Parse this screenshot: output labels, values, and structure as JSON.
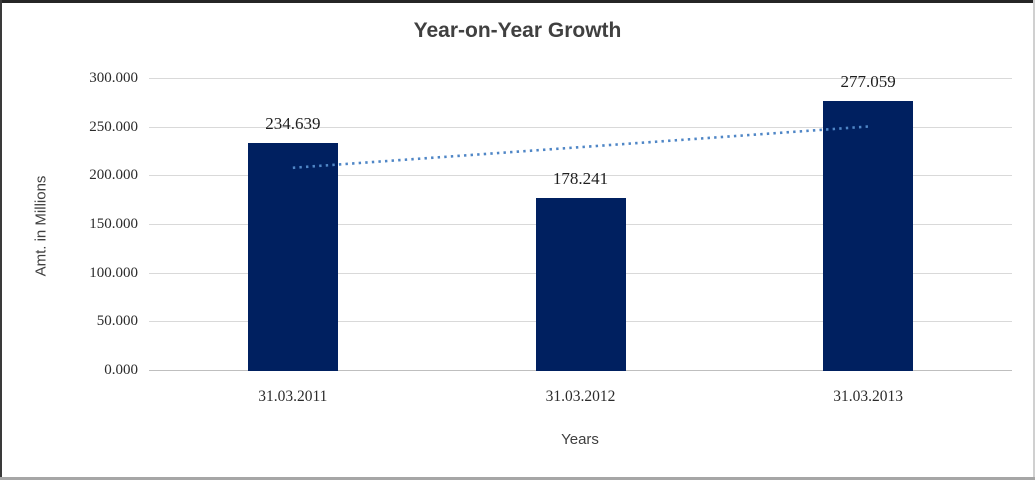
{
  "chart_data": {
    "type": "bar",
    "title": "Year-on-Year Growth",
    "xlabel": "Years",
    "ylabel": "Amt. in Millions",
    "categories": [
      "31.03.2011",
      "31.03.2012",
      "31.03.2013"
    ],
    "values": [
      234.639,
      178.241,
      277.059
    ],
    "value_labels": [
      "234.639",
      "178.241",
      "277.059"
    ],
    "ytick_labels": [
      "0.000",
      "50.000",
      "100.000",
      "150.000",
      "200.000",
      "250.000",
      "300.000"
    ],
    "ylim": [
      0,
      300
    ],
    "grid": "horizontal",
    "legend": "none",
    "bar_color": "#002060",
    "gridline_color": "#d9d9d9",
    "trendline": {
      "type": "linear",
      "style": "dotted",
      "color": "#4f86c6",
      "start_value": 208.8,
      "end_value": 251.2
    }
  }
}
